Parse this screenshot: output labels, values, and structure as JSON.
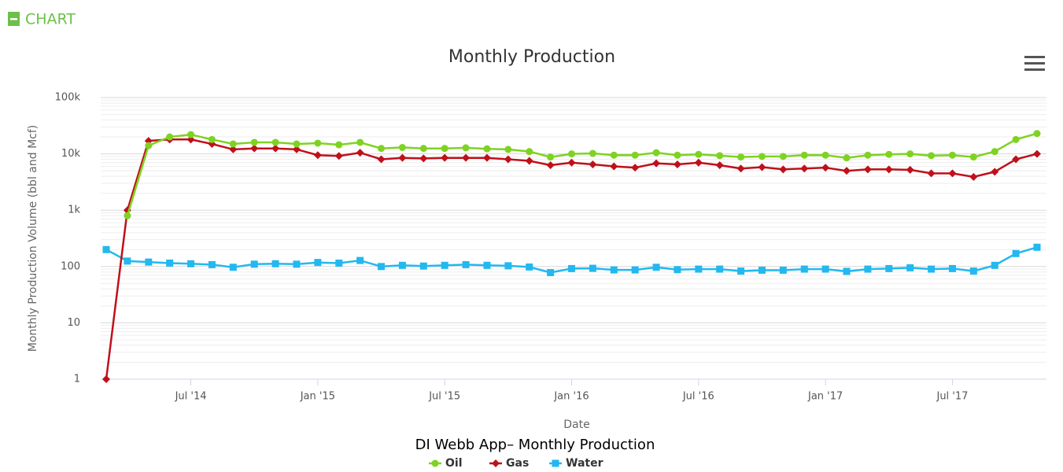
{
  "header": {
    "title": "CHART"
  },
  "caption": "DI Webb App– Monthly Production",
  "chart_data": {
    "type": "line",
    "title": "Monthly Production",
    "x_label": "Date",
    "y_label": "Monthly Production Volume (bbl and Mcf)",
    "log_scale": true,
    "grid": true,
    "legend": "bottom",
    "x": [
      "2014-03",
      "2014-04",
      "2014-05",
      "2014-06",
      "2014-07",
      "2014-08",
      "2014-09",
      "2014-10",
      "2014-11",
      "2014-12",
      "2015-01",
      "2015-02",
      "2015-03",
      "2015-04",
      "2015-05",
      "2015-06",
      "2015-07",
      "2015-08",
      "2015-09",
      "2015-10",
      "2015-11",
      "2015-12",
      "2016-01",
      "2016-02",
      "2016-03",
      "2016-04",
      "2016-05",
      "2016-06",
      "2016-07",
      "2016-08",
      "2016-09",
      "2016-10",
      "2016-11",
      "2016-12",
      "2017-01",
      "2017-02",
      "2017-03",
      "2017-04",
      "2017-05",
      "2017-06",
      "2017-07",
      "2017-08",
      "2017-09",
      "2017-10",
      "2017-11"
    ],
    "xlim": [
      "2014-03",
      "2017-11"
    ],
    "xticks": [
      {
        "value": "2014-07",
        "label": "Jul '14"
      },
      {
        "value": "2015-01",
        "label": "Jan '15"
      },
      {
        "value": "2015-07",
        "label": "Jul '15"
      },
      {
        "value": "2016-01",
        "label": "Jan '16"
      },
      {
        "value": "2016-07",
        "label": "Jul '16"
      },
      {
        "value": "2017-01",
        "label": "Jan '17"
      },
      {
        "value": "2017-07",
        "label": "Jul '17"
      }
    ],
    "ylim": [
      1,
      100000
    ],
    "yticks": [
      1,
      10,
      100,
      {
        "value": 1000,
        "label": "1k"
      },
      {
        "value": 10000,
        "label": "10k"
      },
      {
        "value": 100000,
        "label": "100k"
      }
    ],
    "series": [
      {
        "name": "Oil",
        "color": "#7ed321",
        "marker": "circle",
        "values": [
          null,
          800,
          14000,
          20000,
          22000,
          18000,
          15000,
          16000,
          16000,
          15000,
          15500,
          14500,
          16000,
          12500,
          13000,
          12500,
          12500,
          12800,
          12300,
          12000,
          11000,
          8800,
          10000,
          10200,
          9500,
          9500,
          10500,
          9500,
          9800,
          9300,
          8800,
          9000,
          9000,
          9500,
          9500,
          8500,
          9500,
          9800,
          10000,
          9300,
          9500,
          8800,
          11000,
          18000,
          23000
        ]
      },
      {
        "name": "Gas",
        "color": "#c0101a",
        "marker": "diamond",
        "values": [
          1,
          1000,
          17000,
          18000,
          18000,
          15000,
          12000,
          12500,
          12500,
          12000,
          9500,
          9200,
          10500,
          8000,
          8500,
          8300,
          8500,
          8500,
          8500,
          8000,
          7500,
          6300,
          7000,
          6500,
          6000,
          5700,
          6800,
          6500,
          7000,
          6300,
          5500,
          5800,
          5300,
          5500,
          5700,
          5000,
          5300,
          5300,
          5200,
          4500,
          4500,
          3900,
          4800,
          8000,
          10000
        ]
      },
      {
        "name": "Water",
        "color": "#22b8f0",
        "marker": "square",
        "values": [
          200,
          125,
          120,
          115,
          112,
          108,
          97,
          110,
          112,
          110,
          118,
          115,
          128,
          100,
          105,
          102,
          105,
          108,
          105,
          103,
          98,
          78,
          92,
          93,
          87,
          87,
          97,
          88,
          90,
          90,
          83,
          86,
          86,
          90,
          90,
          82,
          90,
          92,
          95,
          90,
          92,
          83,
          105,
          170,
          220
        ]
      }
    ]
  }
}
